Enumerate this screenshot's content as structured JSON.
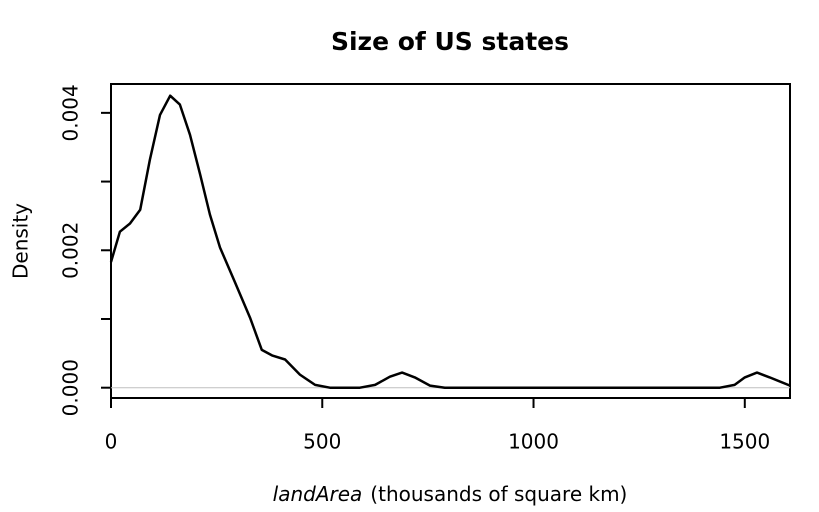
{
  "chart_data": {
    "type": "line",
    "title": "Size of US states",
    "y_label": "Density",
    "x_label_var": "landArea",
    "x_label_unit": "(thousands of square km)",
    "color": "#000000",
    "zero_line": true,
    "zero_line_color": "#bfbfbf",
    "xlim": [
      0,
      1607
    ],
    "xticks": [
      0,
      500,
      1000,
      1500
    ],
    "ylim": [
      -0.00015,
      0.00442
    ],
    "yticks": [
      {
        "value": 0,
        "label": "0.000"
      },
      {
        "value": 0.002,
        "label": "0.002"
      },
      {
        "value": 0.004,
        "label": "0.004"
      }
    ],
    "yminor_ticks": [
      0.001,
      0.003
    ],
    "series": [
      {
        "name": "density",
        "color": "#000000",
        "x": [
          0,
          21,
          45,
          69,
          92,
          116,
          140,
          163,
          187,
          211,
          234,
          258,
          293,
          329,
          357,
          381,
          412,
          447,
          483,
          518,
          589,
          625,
          660,
          689,
          719,
          755,
          790,
          1441,
          1476,
          1500,
          1529,
          1559,
          1607
        ],
        "values": [
          0.00183,
          0.00227,
          0.00239,
          0.00259,
          0.00332,
          0.00397,
          0.00425,
          0.00412,
          0.00368,
          0.0031,
          0.00252,
          0.00204,
          0.00154,
          0.00102,
          0.00055,
          0.00047,
          0.00041,
          0.00019,
          4e-05,
          0,
          0,
          4e-05,
          0.00016,
          0.00022,
          0.00015,
          3e-05,
          0,
          0,
          4e-05,
          0.00015,
          0.00022,
          0.00015,
          3e-05
        ]
      }
    ]
  }
}
